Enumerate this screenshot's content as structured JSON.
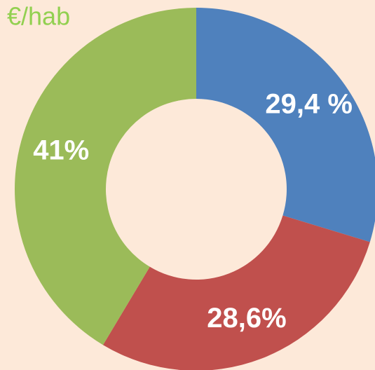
{
  "chart_data": {
    "type": "donut",
    "title": "€/hab",
    "values": [
      29.4,
      28.6,
      41
    ],
    "value_labels": [
      "29,4 %",
      "28,6%",
      "41%"
    ],
    "colors": [
      "#4f81bd",
      "#c0504d",
      "#9bbb59"
    ]
  }
}
